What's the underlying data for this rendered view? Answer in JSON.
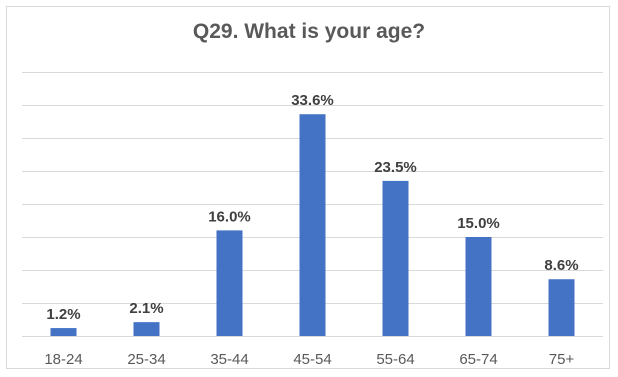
{
  "chart_data": {
    "type": "bar",
    "title": "Q29.  What is your age?",
    "categories": [
      "18-24",
      "25-34",
      "35-44",
      "45-54",
      "55-64",
      "65-74",
      "75+"
    ],
    "values": [
      1.2,
      2.1,
      16.0,
      33.6,
      23.5,
      15.0,
      8.6
    ],
    "data_labels": [
      "1.2%",
      "2.1%",
      "16.0%",
      "33.6%",
      "23.5%",
      "15.0%",
      "8.6%"
    ],
    "xlabel": "",
    "ylabel": "",
    "ylim": [
      0,
      40
    ],
    "grid": true,
    "color": "#4472c4"
  }
}
